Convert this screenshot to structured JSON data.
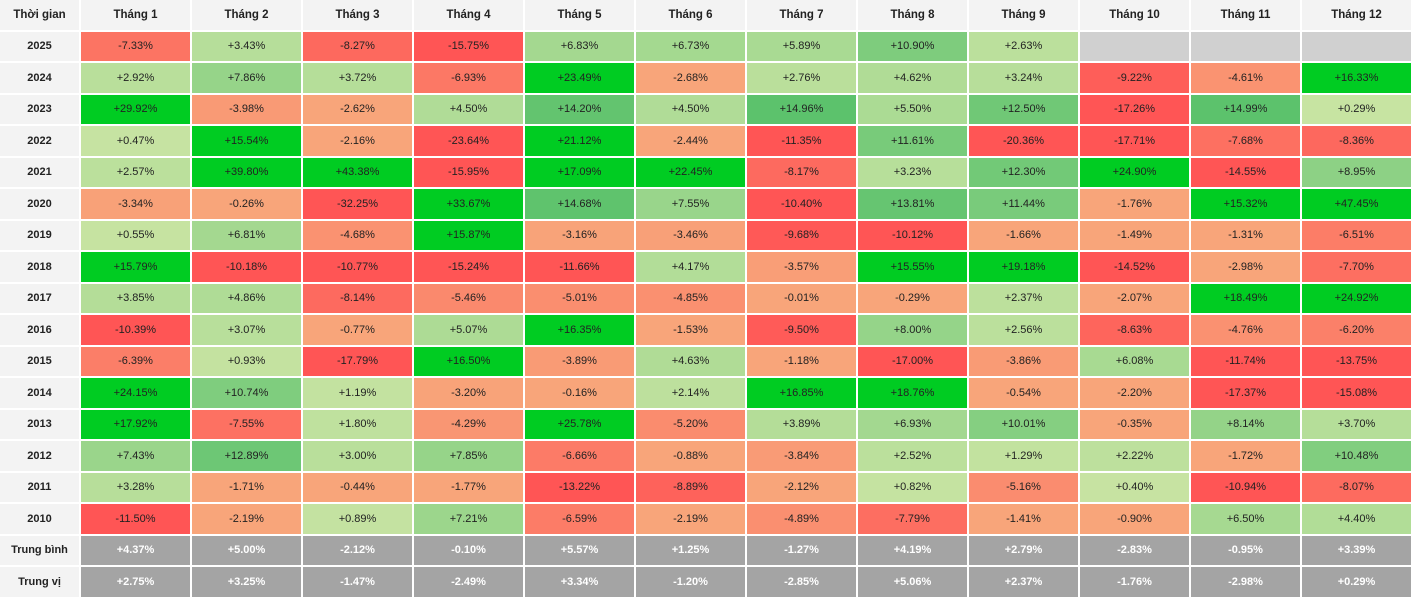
{
  "colors": {
    "strong_green": "#00cc22",
    "green": "#5cc26c",
    "light_green": "#c9e4a3",
    "orange": "#f8a57a",
    "red": "#ff5555",
    "empty": "#d0d0d0",
    "summary_bg": "#a4a4a4",
    "header_bg": "#f3f3f3"
  },
  "table": {
    "corner_label": "Thời gian",
    "months": [
      "Tháng 1",
      "Tháng 2",
      "Tháng 3",
      "Tháng 4",
      "Tháng 5",
      "Tháng 6",
      "Tháng 7",
      "Tháng 8",
      "Tháng 9",
      "Tháng 10",
      "Tháng 11",
      "Tháng 12"
    ],
    "rows": [
      {
        "year": "2025",
        "values": [
          "-7.33%",
          "+3.43%",
          "-8.27%",
          "-15.75%",
          "+6.83%",
          "+6.73%",
          "+5.89%",
          "+10.90%",
          "+2.63%",
          "",
          "",
          ""
        ]
      },
      {
        "year": "2024",
        "values": [
          "+2.92%",
          "+7.86%",
          "+3.72%",
          "-6.93%",
          "+23.49%",
          "-2.68%",
          "+2.76%",
          "+4.62%",
          "+3.24%",
          "-9.22%",
          "-4.61%",
          "+16.33%"
        ]
      },
      {
        "year": "2023",
        "values": [
          "+29.92%",
          "-3.98%",
          "-2.62%",
          "+4.50%",
          "+14.20%",
          "+4.50%",
          "+14.96%",
          "+5.50%",
          "+12.50%",
          "-17.26%",
          "+14.99%",
          "+0.29%"
        ]
      },
      {
        "year": "2022",
        "values": [
          "+0.47%",
          "+15.54%",
          "-2.16%",
          "-23.64%",
          "+21.12%",
          "-2.44%",
          "-11.35%",
          "+11.61%",
          "-20.36%",
          "-17.71%",
          "-7.68%",
          "-8.36%"
        ]
      },
      {
        "year": "2021",
        "values": [
          "+2.57%",
          "+39.80%",
          "+43.38%",
          "-15.95%",
          "+17.09%",
          "+22.45%",
          "-8.17%",
          "+3.23%",
          "+12.30%",
          "+24.90%",
          "-14.55%",
          "+8.95%"
        ]
      },
      {
        "year": "2020",
        "values": [
          "-3.34%",
          "-0.26%",
          "-32.25%",
          "+33.67%",
          "+14.68%",
          "+7.55%",
          "-10.40%",
          "+13.81%",
          "+11.44%",
          "-1.76%",
          "+15.32%",
          "+47.45%"
        ]
      },
      {
        "year": "2019",
        "values": [
          "+0.55%",
          "+6.81%",
          "-4.68%",
          "+15.87%",
          "-3.16%",
          "-3.46%",
          "-9.68%",
          "-10.12%",
          "-1.66%",
          "-1.49%",
          "-1.31%",
          "-6.51%"
        ]
      },
      {
        "year": "2018",
        "values": [
          "+15.79%",
          "-10.18%",
          "-10.77%",
          "-15.24%",
          "-11.66%",
          "+4.17%",
          "-3.57%",
          "+15.55%",
          "+19.18%",
          "-14.52%",
          "-2.98%",
          "-7.70%"
        ]
      },
      {
        "year": "2017",
        "values": [
          "+3.85%",
          "+4.86%",
          "-8.14%",
          "-5.46%",
          "-5.01%",
          "-4.85%",
          "-0.01%",
          "-0.29%",
          "+2.37%",
          "-2.07%",
          "+18.49%",
          "+24.92%"
        ]
      },
      {
        "year": "2016",
        "values": [
          "-10.39%",
          "+3.07%",
          "-0.77%",
          "+5.07%",
          "+16.35%",
          "-1.53%",
          "-9.50%",
          "+8.00%",
          "+2.56%",
          "-8.63%",
          "-4.76%",
          "-6.20%"
        ]
      },
      {
        "year": "2015",
        "values": [
          "-6.39%",
          "+0.93%",
          "-17.79%",
          "+16.50%",
          "-3.89%",
          "+4.63%",
          "-1.18%",
          "-17.00%",
          "-3.86%",
          "+6.08%",
          "-11.74%",
          "-13.75%"
        ]
      },
      {
        "year": "2014",
        "values": [
          "+24.15%",
          "+10.74%",
          "+1.19%",
          "-3.20%",
          "-0.16%",
          "+2.14%",
          "+16.85%",
          "+18.76%",
          "-0.54%",
          "-2.20%",
          "-17.37%",
          "-15.08%"
        ]
      },
      {
        "year": "2013",
        "values": [
          "+17.92%",
          "-7.55%",
          "+1.80%",
          "-4.29%",
          "+25.78%",
          "-5.20%",
          "+3.89%",
          "+6.93%",
          "+10.01%",
          "-0.35%",
          "+8.14%",
          "+3.70%"
        ]
      },
      {
        "year": "2012",
        "values": [
          "+7.43%",
          "+12.89%",
          "+3.00%",
          "+7.85%",
          "-6.66%",
          "-0.88%",
          "-3.84%",
          "+2.52%",
          "+1.29%",
          "+2.22%",
          "-1.72%",
          "+10.48%"
        ]
      },
      {
        "year": "2011",
        "values": [
          "+3.28%",
          "-1.71%",
          "-0.44%",
          "-1.77%",
          "-13.22%",
          "-8.89%",
          "-2.12%",
          "+0.82%",
          "-5.16%",
          "+0.40%",
          "-10.94%",
          "-8.07%"
        ]
      },
      {
        "year": "2010",
        "values": [
          "-11.50%",
          "-2.19%",
          "+0.89%",
          "+7.21%",
          "-6.59%",
          "-2.19%",
          "-4.89%",
          "-7.79%",
          "-1.41%",
          "-0.90%",
          "+6.50%",
          "+4.40%"
        ]
      }
    ],
    "summary_rows": [
      {
        "label": "Trung bình",
        "values": [
          "+4.37%",
          "+5.00%",
          "-2.12%",
          "-0.10%",
          "+5.57%",
          "+1.25%",
          "-1.27%",
          "+4.19%",
          "+2.79%",
          "-2.83%",
          "-0.95%",
          "+3.39%"
        ]
      },
      {
        "label": "Trung vị",
        "values": [
          "+2.75%",
          "+3.25%",
          "-1.47%",
          "-2.49%",
          "+3.34%",
          "-1.20%",
          "-2.85%",
          "+5.06%",
          "+2.37%",
          "-1.76%",
          "-2.98%",
          "+0.29%"
        ]
      }
    ]
  }
}
